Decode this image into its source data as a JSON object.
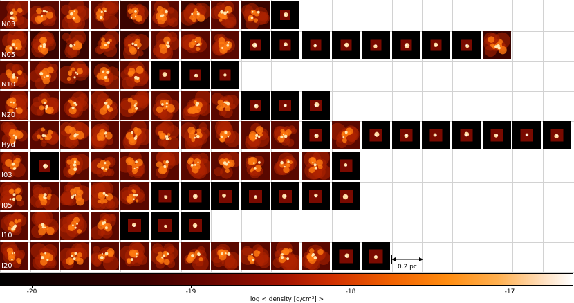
{
  "rows": [
    {
      "label": "N03",
      "count": 10,
      "levels": [
        0.62,
        0.64,
        0.62,
        0.6,
        0.58,
        0.6,
        0.55,
        0.6,
        0.55,
        0.7
      ]
    },
    {
      "label": "N05",
      "count": 17,
      "levels": [
        0.6,
        0.58,
        0.55,
        0.52,
        0.58,
        0.6,
        0.62,
        0.6,
        0.7,
        0.72,
        0.7,
        0.72,
        0.72,
        0.74,
        0.75,
        0.76,
        0.0
      ]
    },
    {
      "label": "N10",
      "count": 8,
      "levels": [
        0.62,
        0.6,
        0.55,
        0.58,
        0.6,
        0.72,
        0.72,
        0.74
      ]
    },
    {
      "label": "N20",
      "count": 11,
      "levels": [
        0.66,
        0.68,
        0.68,
        0.66,
        0.64,
        0.66,
        0.65,
        0.66,
        0.7,
        0.72,
        0.74
      ]
    },
    {
      "label": "Hyd",
      "count": 19,
      "levels": [
        0.66,
        0.68,
        0.68,
        0.66,
        0.64,
        0.64,
        0.65,
        0.6,
        0.66,
        0.66,
        0.7,
        0.62,
        0.72,
        0.74,
        0.76,
        0.76,
        0.76,
        0.76,
        0.76
      ]
    },
    {
      "label": "I03",
      "count": 12,
      "levels": [
        0.6,
        0.7,
        0.6,
        0.62,
        0.68,
        0.6,
        0.62,
        0.62,
        0.66,
        0.62,
        0.64,
        0.76
      ]
    },
    {
      "label": "I05",
      "count": 12,
      "levels": [
        0.6,
        0.62,
        0.6,
        0.64,
        0.68,
        0.72,
        0.72,
        0.72,
        0.74,
        0.76,
        0.76,
        0.76
      ]
    },
    {
      "label": "I10",
      "count": 7,
      "levels": [
        0.6,
        0.6,
        0.6,
        0.62,
        0.7,
        0.72,
        0.74
      ]
    },
    {
      "label": "I20",
      "count": 13,
      "levels": [
        0.62,
        0.62,
        0.64,
        0.6,
        0.62,
        0.64,
        0.66,
        0.68,
        0.6,
        0.62,
        0.68,
        0.72,
        0.74
      ]
    }
  ],
  "scale_bar": {
    "label": "0.2 pc"
  },
  "colorbar": {
    "label": "log < density [g/cm³] >",
    "ticks": [
      {
        "value": -20,
        "text": "-20"
      },
      {
        "value": -19,
        "text": "-19"
      },
      {
        "value": -18,
        "text": "-18"
      },
      {
        "value": -17,
        "text": "-17"
      }
    ],
    "range": [
      -20.2,
      -16.6
    ],
    "colors": [
      "#000000",
      "#3a0000",
      "#a01200",
      "#f06000",
      "#ffb050",
      "#ffffff"
    ]
  }
}
